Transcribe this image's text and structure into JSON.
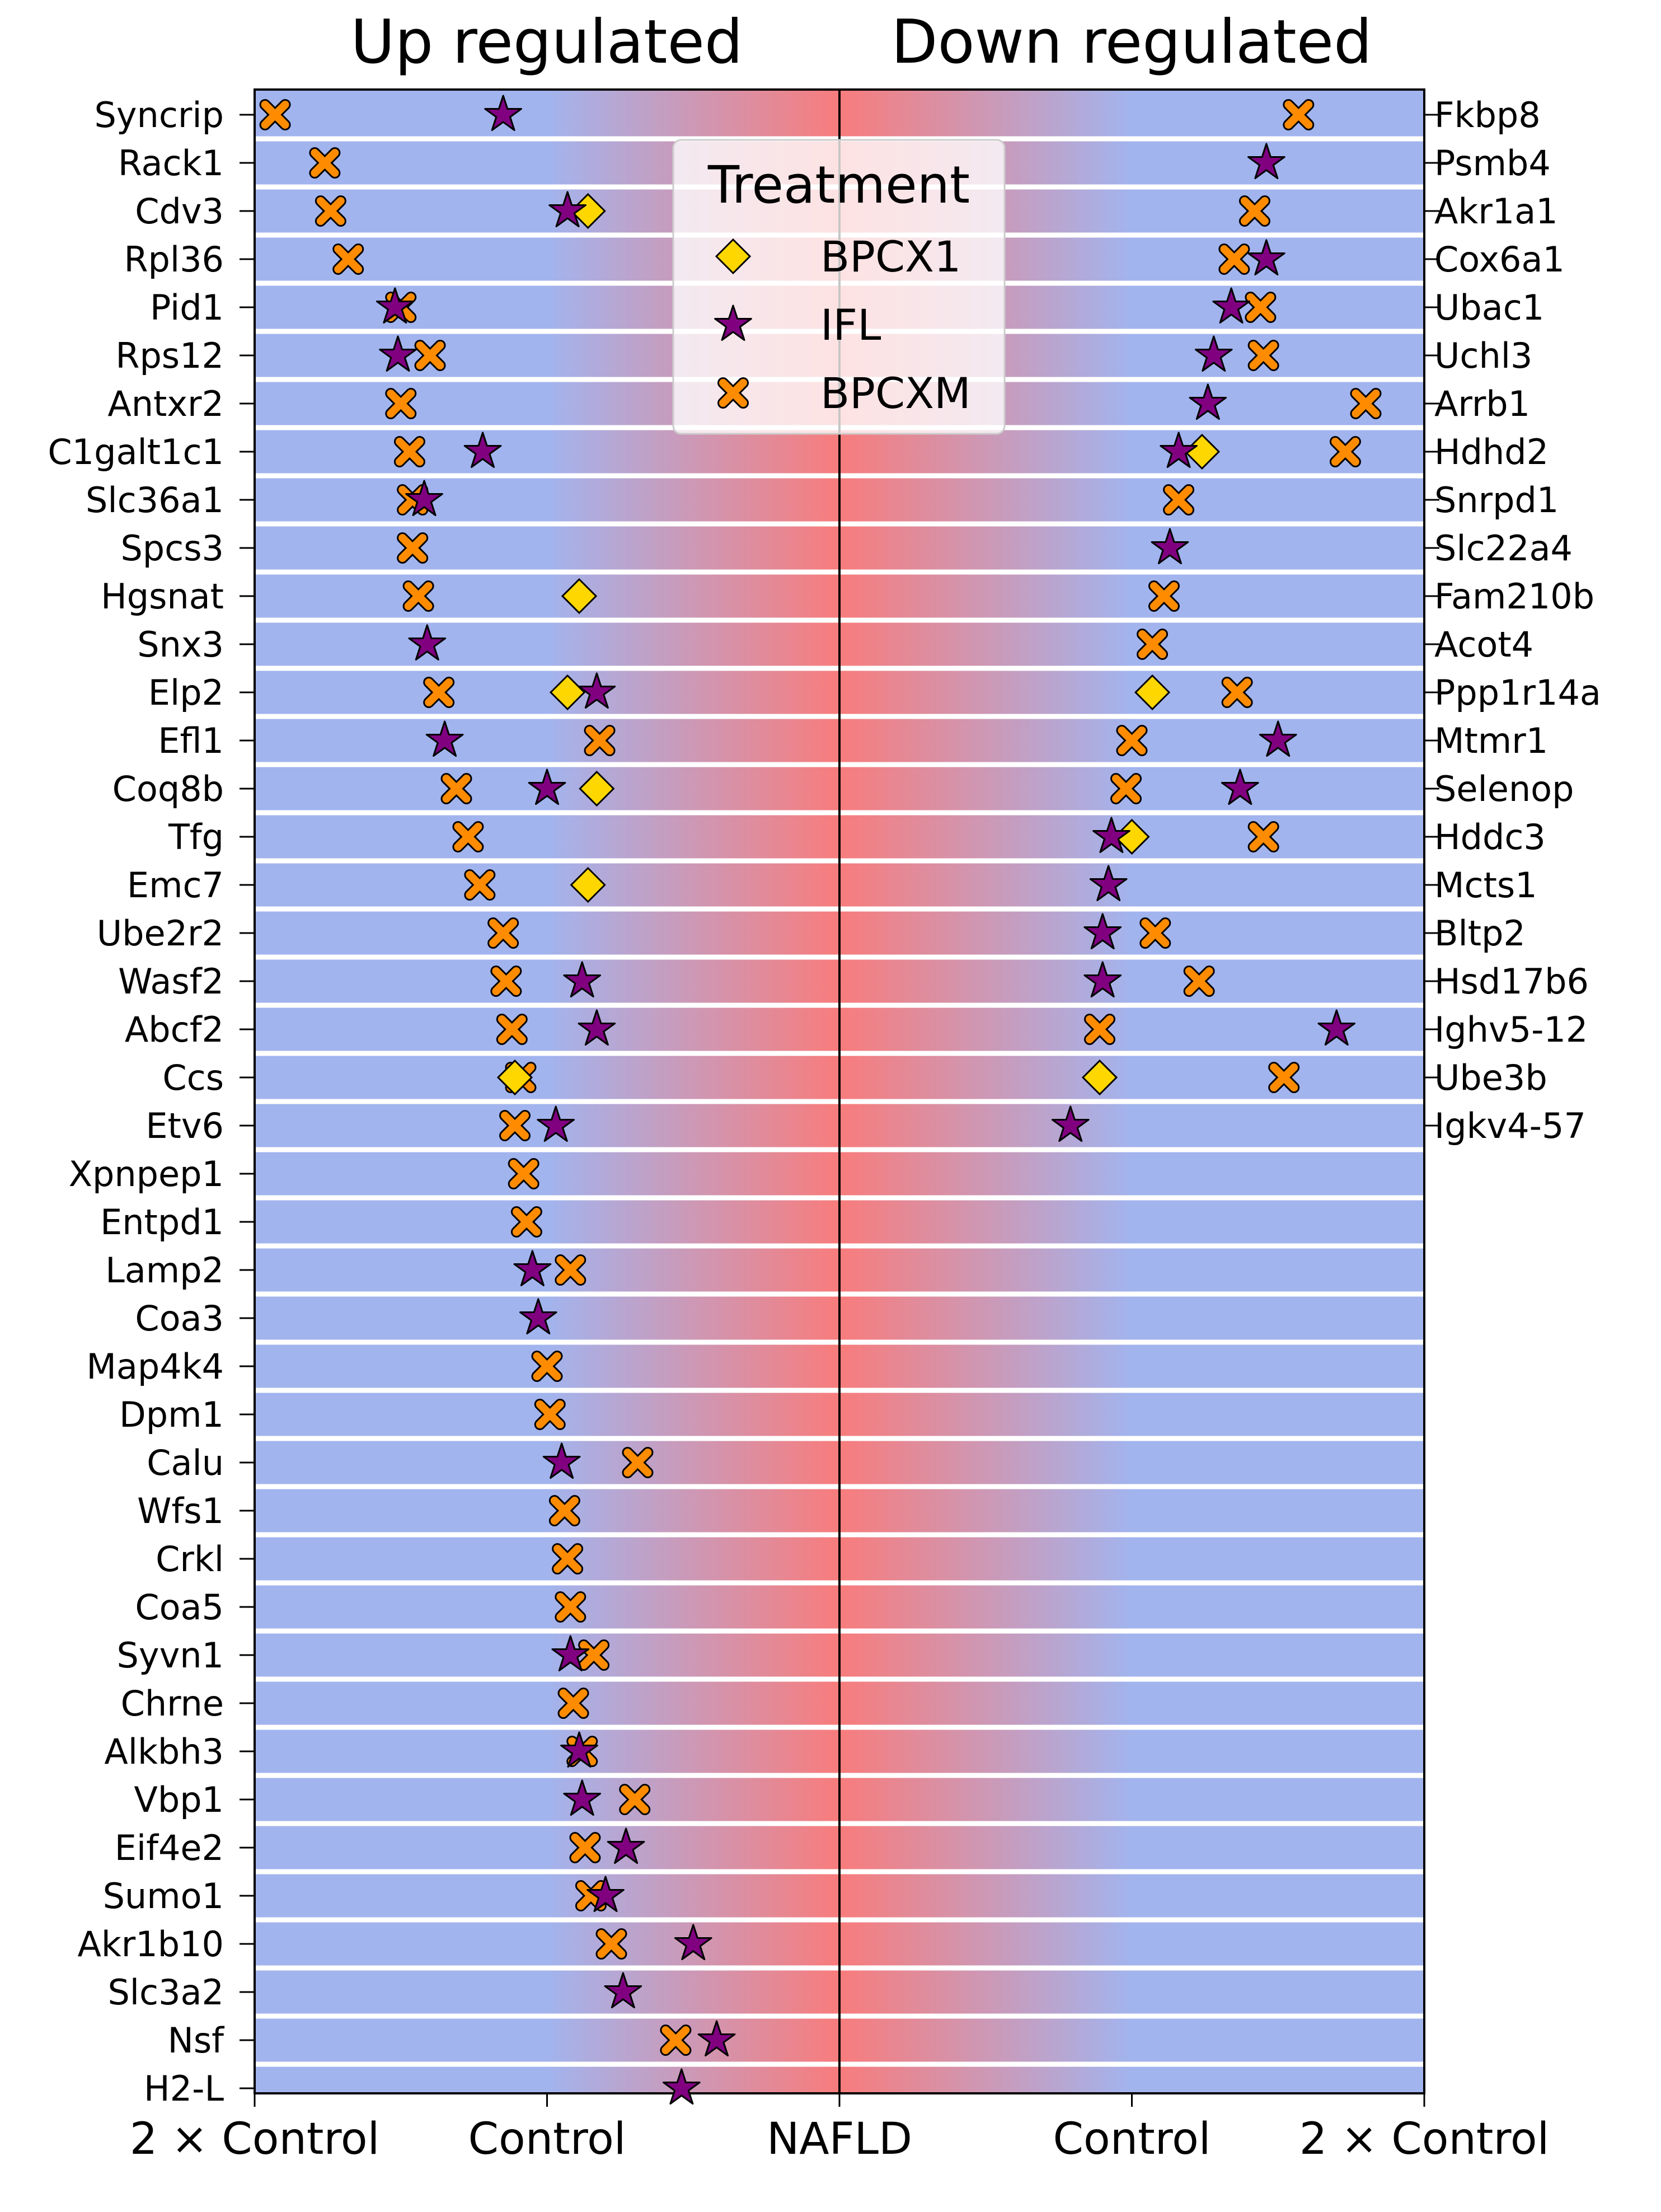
{
  "chart_data": {
    "type": "scatter",
    "panel_titles": {
      "up": "Up regulated",
      "down": "Down regulated"
    },
    "x_tick_labels": [
      "2 × Control",
      "Control",
      "NAFLD",
      "Control",
      "2 × Control"
    ],
    "x_axis_note": "x: 0 = NAFLD (center); ±1 = Control; ±2 = 2 × Control; up-regulated on left (negative), down-regulated on right (positive)",
    "xlim": [
      -2,
      2
    ],
    "legend": {
      "title": "Treatment",
      "placement": "top-center",
      "entries": [
        {
          "name": "BPCX1",
          "marker": "diamond",
          "color": "#FFD700"
        },
        {
          "name": "IFL",
          "marker": "star",
          "color": "#800080"
        },
        {
          "name": "BPCXM",
          "marker": "x",
          "color": "#FF8C00"
        }
      ]
    },
    "colors": {
      "band_control": "#a2b4ee",
      "band_nafld": "#f87c7c",
      "row_separator": "#ffffff",
      "marker_edge": "#000000"
    },
    "up_regulated": [
      {
        "gene": "Syncrip",
        "BPCXM": -1.93,
        "IFL": -1.15
      },
      {
        "gene": "Rack1",
        "BPCXM": -1.76
      },
      {
        "gene": "Cdv3",
        "BPCXM": -1.74,
        "IFL": -0.93,
        "BPCX1": -0.86
      },
      {
        "gene": "Rpl36",
        "BPCXM": -1.68
      },
      {
        "gene": "Pid1",
        "BPCXM": -1.5,
        "IFL": -1.52
      },
      {
        "gene": "Rps12",
        "BPCXM": -1.4,
        "IFL": -1.51
      },
      {
        "gene": "Antxr2",
        "BPCXM": -1.5
      },
      {
        "gene": "C1galt1c1",
        "BPCXM": -1.47,
        "IFL": -1.22
      },
      {
        "gene": "Slc36a1",
        "BPCXM": -1.46,
        "IFL": -1.42
      },
      {
        "gene": "Spcs3",
        "BPCXM": -1.46
      },
      {
        "gene": "Hgsnat",
        "BPCXM": -1.44,
        "BPCX1": -0.89
      },
      {
        "gene": "Snx3",
        "IFL": -1.41
      },
      {
        "gene": "Elp2",
        "BPCXM": -1.37,
        "BPCX1": -0.93,
        "IFL": -0.83
      },
      {
        "gene": "Efl1",
        "IFL": -1.35,
        "BPCXM": -0.82
      },
      {
        "gene": "Coq8b",
        "BPCXM": -1.31,
        "IFL": -1.0,
        "BPCX1": -0.83
      },
      {
        "gene": "Tfg",
        "BPCXM": -1.27
      },
      {
        "gene": "Emc7",
        "BPCXM": -1.23,
        "BPCX1": -0.86
      },
      {
        "gene": "Ube2r2",
        "BPCXM": -1.15
      },
      {
        "gene": "Wasf2",
        "BPCXM": -1.14,
        "IFL": -0.88
      },
      {
        "gene": "Abcf2",
        "BPCXM": -1.12,
        "IFL": -0.83
      },
      {
        "gene": "Ccs",
        "BPCXM": -1.09,
        "BPCX1": -1.11
      },
      {
        "gene": "Etv6",
        "BPCXM": -1.11,
        "IFL": -0.97
      },
      {
        "gene": "Xpnpep1",
        "BPCXM": -1.08
      },
      {
        "gene": "Entpd1",
        "BPCXM": -1.07
      },
      {
        "gene": "Lamp2",
        "IFL": -1.05,
        "BPCXM": -0.92
      },
      {
        "gene": "Coa3",
        "IFL": -1.03
      },
      {
        "gene": "Map4k4",
        "BPCXM": -1.0
      },
      {
        "gene": "Dpm1",
        "BPCXM": -0.99
      },
      {
        "gene": "Calu",
        "IFL": -0.95,
        "BPCXM": -0.69
      },
      {
        "gene": "Wfs1",
        "BPCXM": -0.94
      },
      {
        "gene": "Crkl",
        "BPCXM": -0.93
      },
      {
        "gene": "Coa5",
        "BPCXM": -0.92
      },
      {
        "gene": "Syvn1",
        "IFL": -0.92,
        "BPCXM": -0.84
      },
      {
        "gene": "Chrne",
        "BPCXM": -0.91
      },
      {
        "gene": "Alkbh3",
        "BPCXM": -0.88,
        "IFL": -0.89
      },
      {
        "gene": "Vbp1",
        "IFL": -0.88,
        "BPCXM": -0.7
      },
      {
        "gene": "Eif4e2",
        "BPCXM": -0.87,
        "IFL": -0.73
      },
      {
        "gene": "Sumo1",
        "BPCXM": -0.85,
        "IFL": -0.8
      },
      {
        "gene": "Akr1b10",
        "BPCXM": -0.78,
        "IFL": -0.5
      },
      {
        "gene": "Slc3a2",
        "IFL": -0.74
      },
      {
        "gene": "Nsf",
        "BPCXM": -0.56,
        "IFL": -0.42
      },
      {
        "gene": "H2-L",
        "IFL": -0.54
      }
    ],
    "down_regulated": [
      {
        "gene": "Fkbp8",
        "BPCXM": 1.57
      },
      {
        "gene": "Psmb4",
        "IFL": 1.46
      },
      {
        "gene": "Akr1a1",
        "BPCXM": 1.42
      },
      {
        "gene": "Cox6a1",
        "BPCXM": 1.35,
        "IFL": 1.46
      },
      {
        "gene": "Ubac1",
        "IFL": 1.34,
        "BPCXM": 1.44
      },
      {
        "gene": "Uchl3",
        "IFL": 1.28,
        "BPCXM": 1.45
      },
      {
        "gene": "Arrb1",
        "IFL": 1.26,
        "BPCXM": 1.8
      },
      {
        "gene": "Hdhd2",
        "IFL": 1.16,
        "BPCX1": 1.24,
        "BPCXM": 1.73
      },
      {
        "gene": "Snrpd1",
        "BPCXM": 1.16
      },
      {
        "gene": "Slc22a4",
        "IFL": 1.13
      },
      {
        "gene": "Fam210b",
        "BPCXM": 1.11
      },
      {
        "gene": "Acot4",
        "BPCXM": 1.07
      },
      {
        "gene": "Ppp1r14a",
        "BPCX1": 1.07,
        "BPCXM": 1.36
      },
      {
        "gene": "Mtmr1",
        "BPCXM": 1.0,
        "IFL": 1.5
      },
      {
        "gene": "Selenop",
        "BPCXM": 0.98,
        "IFL": 1.37
      },
      {
        "gene": "Hddc3",
        "IFL": 0.93,
        "BPCX1": 1.0,
        "BPCXM": 1.45
      },
      {
        "gene": "Mcts1",
        "IFL": 0.92
      },
      {
        "gene": "Bltp2",
        "IFL": 0.9,
        "BPCXM": 1.08
      },
      {
        "gene": "Hsd17b6",
        "IFL": 0.9,
        "BPCXM": 1.23
      },
      {
        "gene": "Ighv5-12",
        "BPCXM": 0.89,
        "IFL": 1.7
      },
      {
        "gene": "Ube3b",
        "BPCX1": 0.89,
        "BPCXM": 1.52
      },
      {
        "gene": "Igkv4-57",
        "IFL": 0.79
      }
    ]
  }
}
